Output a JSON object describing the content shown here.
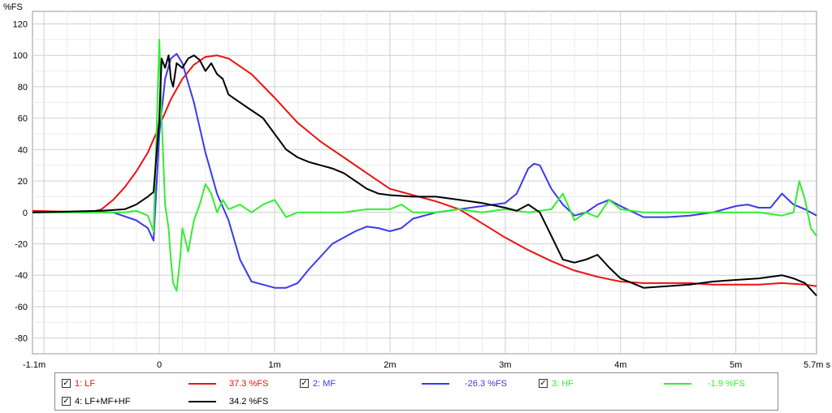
{
  "chart_data": {
    "type": "line",
    "ylabel": "%FS",
    "ylim": [
      -90,
      128
    ],
    "xlim": [
      -1.1,
      5.7
    ],
    "y_ticks": [
      "120",
      "100",
      "80",
      "60",
      "40",
      "20",
      "0",
      "-20",
      "-40",
      "-60",
      "-80"
    ],
    "y_tick_values": [
      120,
      100,
      80,
      60,
      40,
      20,
      0,
      -20,
      -40,
      -60,
      -80
    ],
    "x_ticks": [
      "-1.1m",
      "0",
      "1m",
      "2m",
      "3m",
      "4m",
      "5m",
      "5.7m s"
    ],
    "x_tick_values": [
      -1.1,
      0,
      1,
      2,
      3,
      4,
      5,
      5.7
    ],
    "grid": true,
    "series": [
      {
        "name": "1: LF",
        "color": "#ee1111",
        "cursor_value": "37.3 %FS",
        "x": [
          -1.1,
          -0.6,
          -0.5,
          -0.4,
          -0.3,
          -0.2,
          -0.1,
          0,
          0.1,
          0.2,
          0.3,
          0.4,
          0.5,
          0.6,
          0.8,
          1.0,
          1.2,
          1.4,
          1.6,
          1.8,
          2.0,
          2.2,
          2.4,
          2.6,
          2.8,
          3.0,
          3.2,
          3.4,
          3.6,
          3.8,
          4.0,
          4.2,
          4.4,
          4.6,
          4.8,
          5.0,
          5.2,
          5.4,
          5.6,
          5.7
        ],
        "y": [
          1,
          0,
          2,
          8,
          16,
          26,
          38,
          55,
          72,
          85,
          94,
          99,
          100,
          98,
          88,
          73,
          57,
          45,
          35,
          25,
          15,
          11,
          7,
          2,
          -7,
          -16,
          -24,
          -31,
          -37,
          -41,
          -44,
          -45,
          -45,
          -45,
          -46,
          -46,
          -46,
          -45,
          -46,
          -47
        ]
      },
      {
        "name": "2: MF",
        "color": "#3a3aee",
        "cursor_value": "-26.3 %FS",
        "x": [
          -1.1,
          -0.4,
          -0.2,
          -0.1,
          -0.05,
          0,
          0.05,
          0.1,
          0.15,
          0.2,
          0.3,
          0.4,
          0.5,
          0.6,
          0.7,
          0.8,
          0.9,
          1.0,
          1.1,
          1.2,
          1.3,
          1.4,
          1.5,
          1.6,
          1.7,
          1.8,
          1.9,
          2.0,
          2.1,
          2.2,
          2.4,
          2.6,
          2.8,
          3.0,
          3.1,
          3.2,
          3.25,
          3.3,
          3.4,
          3.5,
          3.6,
          3.7,
          3.8,
          3.9,
          4.0,
          4.2,
          4.4,
          4.6,
          4.8,
          5.0,
          5.1,
          5.2,
          5.3,
          5.4,
          5.5,
          5.6,
          5.7
        ],
        "y": [
          0,
          0,
          -5,
          -10,
          -18,
          50,
          85,
          98,
          101,
          95,
          70,
          38,
          12,
          -5,
          -30,
          -44,
          -46,
          -48,
          -48,
          -45,
          -36,
          -28,
          -20,
          -16,
          -12,
          -9,
          -10,
          -12,
          -10,
          -4,
          0,
          2,
          4,
          6,
          12,
          28,
          31,
          30,
          15,
          5,
          -2,
          0,
          5,
          8,
          4,
          -3,
          -3,
          -2,
          0,
          4,
          5,
          3,
          3,
          12,
          5,
          2,
          -2
        ]
      },
      {
        "name": "3: HF",
        "color": "#33ee33",
        "cursor_value": "-1.9 %FS",
        "x": [
          -1.1,
          -0.5,
          -0.3,
          -0.2,
          -0.1,
          -0.05,
          0,
          0.02,
          0.05,
          0.08,
          0.1,
          0.12,
          0.15,
          0.18,
          0.2,
          0.25,
          0.3,
          0.35,
          0.4,
          0.45,
          0.5,
          0.55,
          0.6,
          0.7,
          0.8,
          0.9,
          1.0,
          1.1,
          1.2,
          1.4,
          1.6,
          1.8,
          2.0,
          2.1,
          2.2,
          2.4,
          2.6,
          2.8,
          3.0,
          3.2,
          3.4,
          3.5,
          3.6,
          3.7,
          3.8,
          3.9,
          4.0,
          4.2,
          4.4,
          4.6,
          4.8,
          5.0,
          5.2,
          5.4,
          5.5,
          5.55,
          5.6,
          5.65,
          5.7
        ],
        "y": [
          0,
          0,
          0,
          1,
          -2,
          -12,
          110,
          60,
          5,
          -10,
          -30,
          -45,
          -50,
          -30,
          -10,
          -25,
          -5,
          5,
          18,
          12,
          0,
          8,
          2,
          5,
          0,
          5,
          8,
          -3,
          0,
          0,
          0,
          2,
          2,
          5,
          0,
          0,
          2,
          0,
          2,
          0,
          2,
          12,
          -5,
          0,
          -3,
          8,
          2,
          0,
          0,
          0,
          0,
          0,
          0,
          -2,
          0,
          20,
          8,
          -10,
          -15
        ]
      },
      {
        "name": "4: LF+MF+HF",
        "color": "#000000",
        "cursor_value": "34.2 %FS",
        "x": [
          -1.1,
          -0.5,
          -0.3,
          -0.2,
          -0.1,
          -0.05,
          0,
          0.02,
          0.05,
          0.08,
          0.1,
          0.12,
          0.15,
          0.2,
          0.25,
          0.3,
          0.35,
          0.4,
          0.45,
          0.5,
          0.55,
          0.6,
          0.7,
          0.8,
          0.9,
          1.0,
          1.1,
          1.2,
          1.3,
          1.4,
          1.5,
          1.6,
          1.7,
          1.8,
          1.9,
          2.0,
          2.2,
          2.4,
          2.6,
          2.8,
          3.0,
          3.1,
          3.2,
          3.3,
          3.4,
          3.5,
          3.6,
          3.7,
          3.8,
          3.9,
          4.0,
          4.2,
          4.4,
          4.6,
          4.8,
          5.0,
          5.2,
          5.4,
          5.5,
          5.6,
          5.7
        ],
        "y": [
          0,
          1,
          2,
          5,
          10,
          13,
          60,
          98,
          92,
          100,
          85,
          80,
          95,
          92,
          98,
          100,
          97,
          90,
          95,
          88,
          85,
          75,
          70,
          65,
          60,
          50,
          40,
          35,
          32,
          30,
          28,
          25,
          20,
          15,
          12,
          11,
          10,
          10,
          8,
          6,
          3,
          1,
          5,
          0,
          -15,
          -30,
          -32,
          -30,
          -27,
          -35,
          -42,
          -48,
          -47,
          -46,
          -44,
          -43,
          -42,
          -40,
          -42,
          -45,
          -53
        ]
      }
    ]
  }
}
